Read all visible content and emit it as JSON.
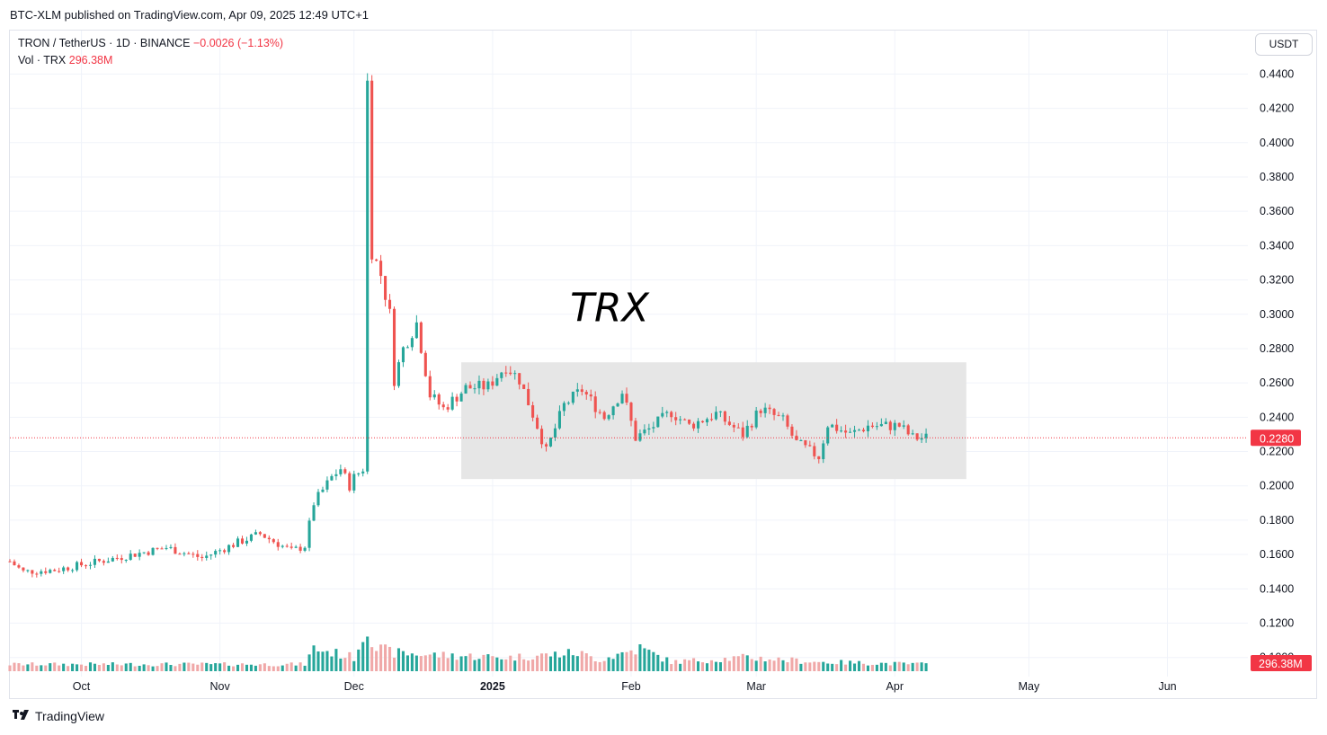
{
  "header": {
    "publish_text": "BTC-XLM published on TradingView.com, Apr 09, 2025 12:49 UTC+1"
  },
  "legend": {
    "symbol_text": "TRON / TetherUS · 1D · BINANCE",
    "change_text": "−0.0026 (−1.13%)",
    "volume_label": "Vol · TRX",
    "volume_value": "296.38M"
  },
  "currency_button": "USDT",
  "footer": {
    "brand": "TradingView"
  },
  "colors": {
    "up": "#26a69a",
    "down": "#ef5350",
    "vol_up": "#26a69a",
    "vol_down": "#f0a8a8",
    "label_red": "#f23645",
    "range_box": "#e5e5e5",
    "grid": "#f0f3fa"
  },
  "chart_data": {
    "type": "candlestick",
    "title": "",
    "annotation_text": "TRX",
    "price_axis": {
      "ticks": [
        "0.4400",
        "0.4200",
        "0.4000",
        "0.3800",
        "0.3600",
        "0.3400",
        "0.3200",
        "0.3000",
        "0.2800",
        "0.2600",
        "0.2400",
        "0.2200",
        "0.2000",
        "0.1800",
        "0.1600",
        "0.1400",
        "0.1200",
        "0.1000"
      ],
      "ylim": [
        0.092,
        0.458
      ]
    },
    "time_axis": {
      "labels": [
        "Oct",
        "Nov",
        "Dec",
        "2025",
        "Feb",
        "Mar",
        "Apr",
        "May",
        "Jun"
      ],
      "label_dates": [
        "2024-10-01",
        "2024-11-01",
        "2024-12-01",
        "2025-01-01",
        "2025-02-01",
        "2025-03-01",
        "2025-04-01",
        "2025-05-01",
        "2025-06-01"
      ],
      "xlim": [
        "2024-09-15",
        "2025-06-19"
      ]
    },
    "last_price": "0.2280",
    "last_volume": "296.38M",
    "range_box": {
      "x_start": "2024-12-25",
      "x_end": "2025-04-17",
      "y_low": 0.204,
      "y_high": 0.272
    },
    "anchors": [
      [
        "2024-09-15",
        0.156
      ],
      [
        "2024-09-18",
        0.15
      ],
      [
        "2024-09-25",
        0.151
      ],
      [
        "2024-10-05",
        0.156
      ],
      [
        "2024-10-20",
        0.164
      ],
      [
        "2024-10-28",
        0.158
      ],
      [
        "2024-11-05",
        0.167
      ],
      [
        "2024-11-10",
        0.172
      ],
      [
        "2024-11-17",
        0.162
      ],
      [
        "2024-11-20",
        0.165
      ],
      [
        "2024-11-22",
        0.19
      ],
      [
        "2024-11-26",
        0.205
      ],
      [
        "2024-11-28",
        0.21
      ],
      [
        "2024-11-30",
        0.2
      ],
      [
        "2024-12-01",
        0.205
      ],
      [
        "2024-12-03",
        0.21
      ],
      [
        "2024-12-04",
        0.435
      ],
      [
        "2024-12-05",
        0.337
      ],
      [
        "2024-12-07",
        0.323
      ],
      [
        "2024-12-09",
        0.3
      ],
      [
        "2024-12-10",
        0.262
      ],
      [
        "2024-12-12",
        0.28
      ],
      [
        "2024-12-15",
        0.295
      ],
      [
        "2024-12-18",
        0.253
      ],
      [
        "2024-12-21",
        0.245
      ],
      [
        "2024-12-26",
        0.257
      ],
      [
        "2024-12-31",
        0.258
      ],
      [
        "2025-01-04",
        0.27
      ],
      [
        "2025-01-07",
        0.262
      ],
      [
        "2025-01-11",
        0.235
      ],
      [
        "2025-01-13",
        0.22
      ],
      [
        "2025-01-17",
        0.247
      ],
      [
        "2025-01-21",
        0.256
      ],
      [
        "2025-01-26",
        0.24
      ],
      [
        "2025-01-30",
        0.255
      ],
      [
        "2025-02-02",
        0.228
      ],
      [
        "2025-02-05",
        0.233
      ],
      [
        "2025-02-10",
        0.243
      ],
      [
        "2025-02-14",
        0.235
      ],
      [
        "2025-02-20",
        0.242
      ],
      [
        "2025-02-26",
        0.23
      ],
      [
        "2025-03-02",
        0.245
      ],
      [
        "2025-03-07",
        0.238
      ],
      [
        "2025-03-10",
        0.225
      ],
      [
        "2025-03-15",
        0.217
      ],
      [
        "2025-03-17",
        0.236
      ],
      [
        "2025-03-22",
        0.23
      ],
      [
        "2025-03-26",
        0.235
      ],
      [
        "2025-04-02",
        0.235
      ],
      [
        "2025-04-05",
        0.228
      ],
      [
        "2025-04-08",
        0.228
      ]
    ],
    "volume_anchors": [
      [
        "2024-09-15",
        0.03
      ],
      [
        "2024-11-20",
        0.03
      ],
      [
        "2024-11-22",
        0.1
      ],
      [
        "2024-12-01",
        0.06
      ],
      [
        "2024-12-04",
        0.2
      ],
      [
        "2024-12-06",
        0.1
      ],
      [
        "2024-12-10",
        0.08
      ],
      [
        "2024-12-20",
        0.07
      ],
      [
        "2025-01-05",
        0.06
      ],
      [
        "2025-01-20",
        0.08
      ],
      [
        "2025-01-25",
        0.05
      ],
      [
        "2025-02-03",
        0.1
      ],
      [
        "2025-02-10",
        0.04
      ],
      [
        "2025-02-27",
        0.06
      ],
      [
        "2025-03-15",
        0.04
      ],
      [
        "2025-04-08",
        0.03
      ]
    ]
  }
}
